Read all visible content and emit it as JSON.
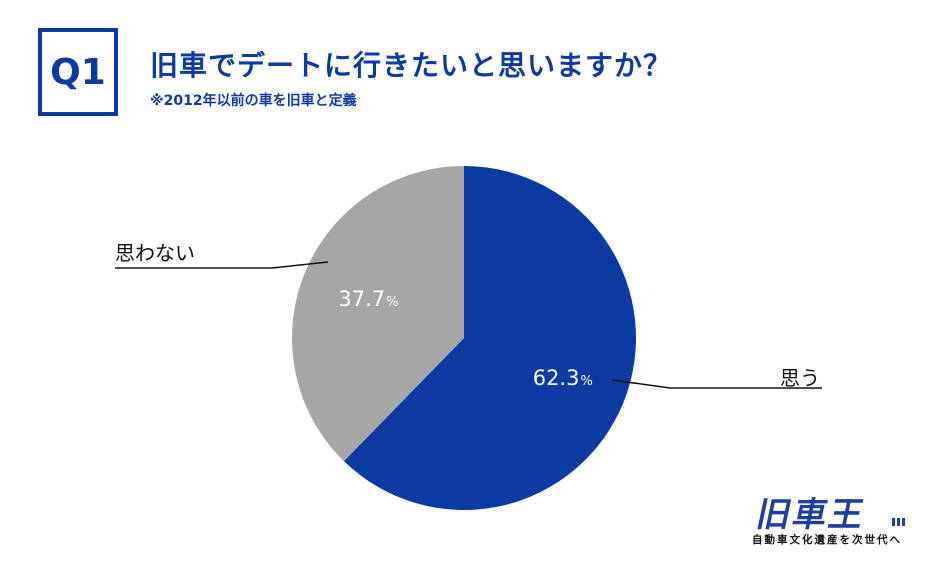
{
  "header": {
    "question_badge": "Q1",
    "title": "旧車でデートに行きたいと思いますか？",
    "note": "※2012年以前の車を旧車と定義"
  },
  "chart_data": {
    "type": "pie",
    "title": "旧車でデートに行きたいと思いますか？",
    "unit": "%",
    "slices": [
      {
        "label": "思う",
        "value": 62.3,
        "display": "62.3",
        "color": "#0b3aa3"
      },
      {
        "label": "思わない",
        "value": 37.7,
        "display": "37.7",
        "color": "#a6a6a6"
      }
    ],
    "start": "12 o'clock",
    "direction": "clockwise"
  },
  "logo": {
    "name": "旧車王",
    "tagline": "自動車文化遺産を次世代へ"
  }
}
